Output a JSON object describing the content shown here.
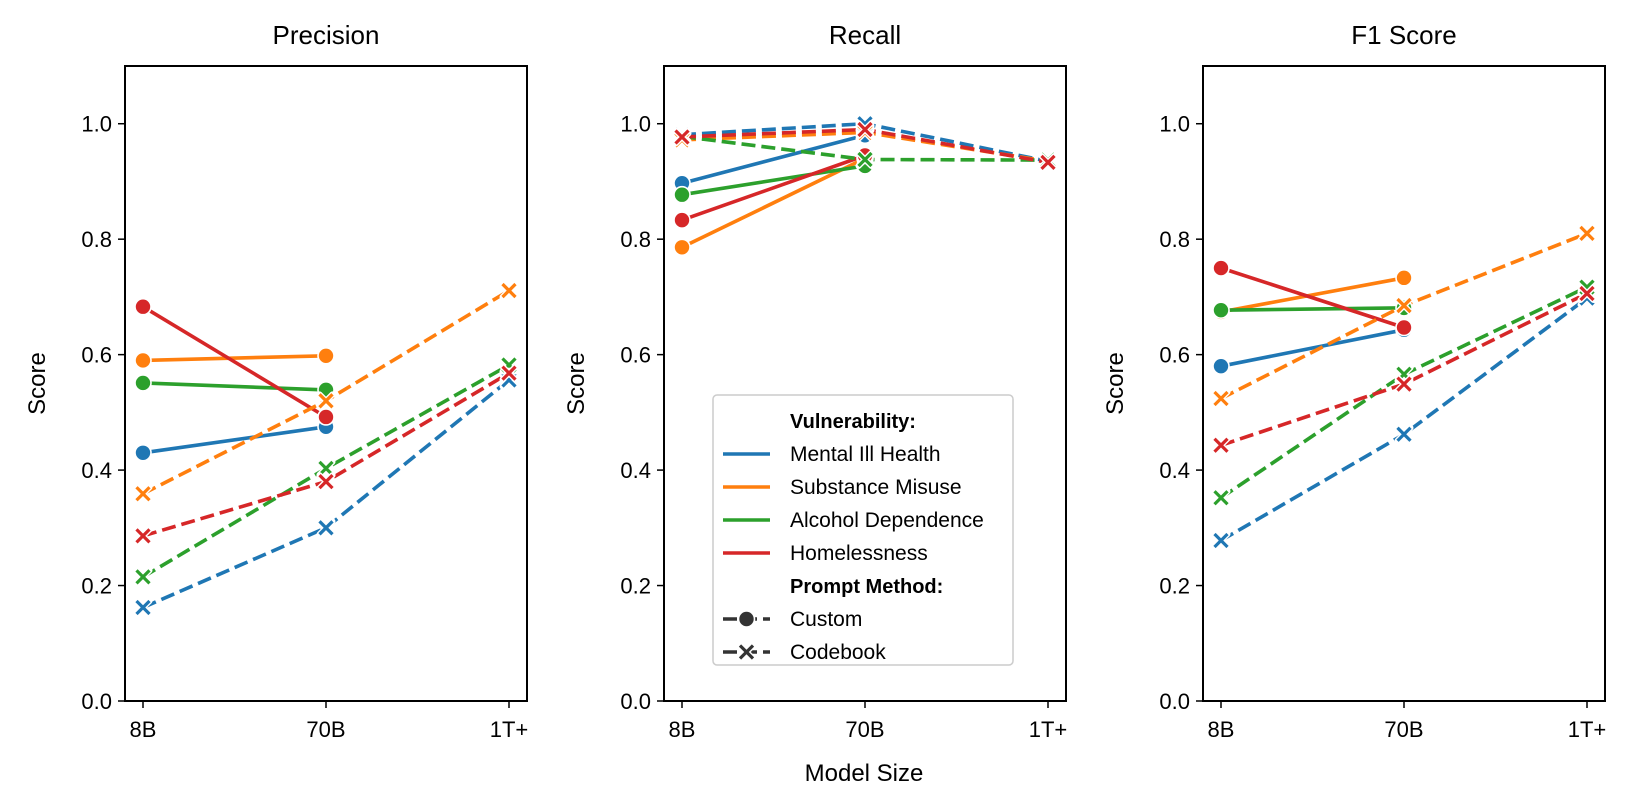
{
  "chart_data": {
    "type": "line",
    "shared_xlabel": "Model Size",
    "categories": [
      "8B",
      "70B",
      "1T+"
    ],
    "colors": {
      "Mental Ill Health": "#1f77b4",
      "Substance Misuse": "#ff7f0e",
      "Alcohol Dependence": "#2ca02c",
      "Homelessness": "#d62728"
    },
    "legend": {
      "vuln_header": "Vulnerability:",
      "vulnerabilities": [
        "Mental Ill Health",
        "Substance Misuse",
        "Alcohol Dependence",
        "Homelessness"
      ],
      "method_header": "Prompt Method:",
      "methods": [
        "Custom",
        "Codebook"
      ],
      "placement": "lower-center"
    },
    "panels": [
      {
        "title": "Precision",
        "ylabel": "Score",
        "ylim": [
          0.0,
          1.1
        ],
        "yticks": [
          "0.0",
          "0.2",
          "0.4",
          "0.6",
          "0.8",
          "1.0"
        ],
        "series": [
          {
            "vulnerability": "Mental Ill Health",
            "method": "Custom",
            "values": [
              0.43,
              0.475,
              null
            ]
          },
          {
            "vulnerability": "Substance Misuse",
            "method": "Custom",
            "values": [
              0.59,
              0.598,
              null
            ]
          },
          {
            "vulnerability": "Alcohol Dependence",
            "method": "Custom",
            "values": [
              0.551,
              0.539,
              null
            ]
          },
          {
            "vulnerability": "Homelessness",
            "method": "Custom",
            "values": [
              0.683,
              0.492,
              null
            ]
          },
          {
            "vulnerability": "Mental Ill Health",
            "method": "Codebook",
            "values": [
              0.162,
              0.3,
              0.556
            ]
          },
          {
            "vulnerability": "Substance Misuse",
            "method": "Codebook",
            "values": [
              0.359,
              0.52,
              0.711
            ]
          },
          {
            "vulnerability": "Alcohol Dependence",
            "method": "Codebook",
            "values": [
              0.215,
              0.403,
              0.582
            ]
          },
          {
            "vulnerability": "Homelessness",
            "method": "Codebook",
            "values": [
              0.286,
              0.38,
              0.568
            ]
          }
        ]
      },
      {
        "title": "Recall",
        "ylabel": "Score",
        "ylim": [
          0.0,
          1.1
        ],
        "yticks": [
          "0.0",
          "0.2",
          "0.4",
          "0.6",
          "0.8",
          "1.0"
        ],
        "series": [
          {
            "vulnerability": "Mental Ill Health",
            "method": "Custom",
            "values": [
              0.897,
              0.98,
              null
            ]
          },
          {
            "vulnerability": "Substance Misuse",
            "method": "Custom",
            "values": [
              0.786,
              0.94,
              null
            ]
          },
          {
            "vulnerability": "Alcohol Dependence",
            "method": "Custom",
            "values": [
              0.877,
              0.927,
              null
            ]
          },
          {
            "vulnerability": "Homelessness",
            "method": "Custom",
            "values": [
              0.833,
              0.945,
              null
            ]
          },
          {
            "vulnerability": "Mental Ill Health",
            "method": "Codebook",
            "values": [
              0.981,
              1.0,
              0.935
            ]
          },
          {
            "vulnerability": "Substance Misuse",
            "method": "Codebook",
            "values": [
              0.972,
              0.985,
              0.935
            ]
          },
          {
            "vulnerability": "Alcohol Dependence",
            "method": "Codebook",
            "values": [
              0.978,
              0.938,
              0.937
            ]
          },
          {
            "vulnerability": "Homelessness",
            "method": "Codebook",
            "values": [
              0.977,
              0.99,
              0.933
            ]
          }
        ]
      },
      {
        "title": "F1 Score",
        "ylabel": "Score",
        "ylim": [
          0.0,
          1.1
        ],
        "yticks": [
          "0.0",
          "0.2",
          "0.4",
          "0.6",
          "0.8",
          "1.0"
        ],
        "series": [
          {
            "vulnerability": "Mental Ill Health",
            "method": "Custom",
            "values": [
              0.58,
              0.643,
              null
            ]
          },
          {
            "vulnerability": "Substance Misuse",
            "method": "Custom",
            "values": [
              0.674,
              0.733,
              null
            ]
          },
          {
            "vulnerability": "Alcohol Dependence",
            "method": "Custom",
            "values": [
              0.677,
              0.681,
              null
            ]
          },
          {
            "vulnerability": "Homelessness",
            "method": "Custom",
            "values": [
              0.75,
              0.647,
              null
            ]
          },
          {
            "vulnerability": "Mental Ill Health",
            "method": "Codebook",
            "values": [
              0.278,
              0.462,
              0.698
            ]
          },
          {
            "vulnerability": "Substance Misuse",
            "method": "Codebook",
            "values": [
              0.524,
              0.685,
              0.81
            ]
          },
          {
            "vulnerability": "Alcohol Dependence",
            "method": "Codebook",
            "values": [
              0.352,
              0.566,
              0.717
            ]
          },
          {
            "vulnerability": "Homelessness",
            "method": "Codebook",
            "values": [
              0.443,
              0.549,
              0.706
            ]
          }
        ]
      }
    ]
  }
}
